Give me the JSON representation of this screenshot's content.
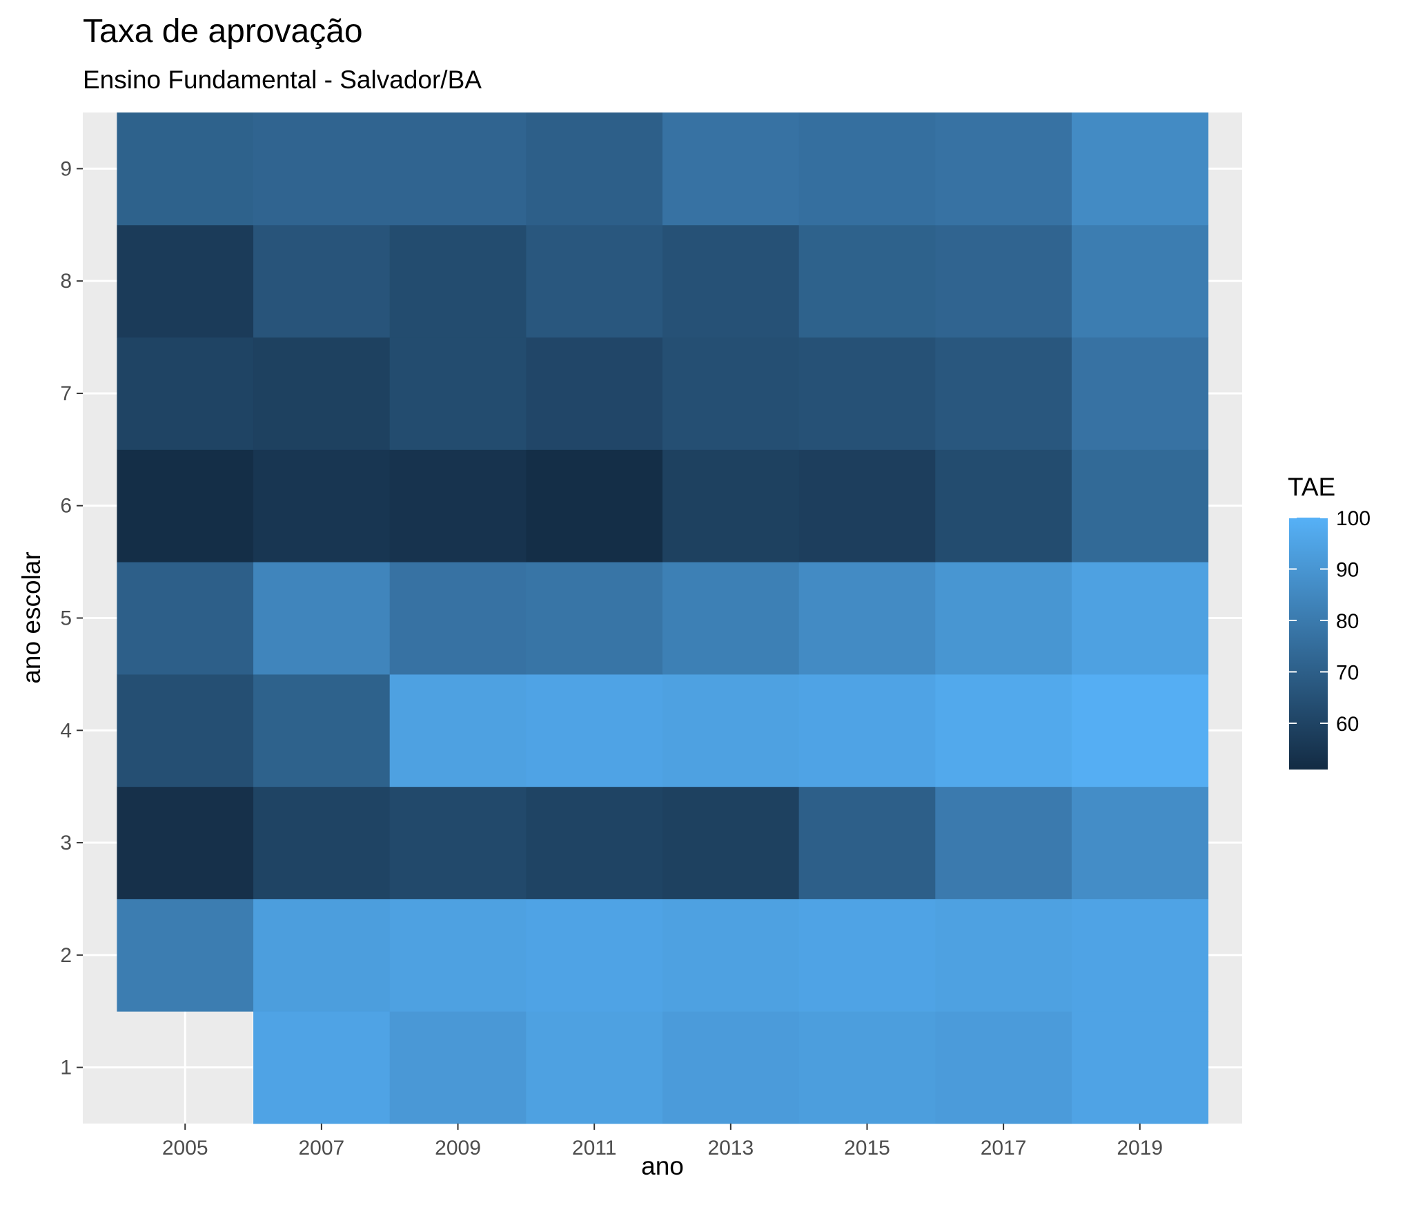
{
  "chart_data": {
    "type": "heatmap",
    "title": "Taxa de aprovação",
    "subtitle": "Ensino Fundamental - Salvador/BA",
    "xlabel": "ano",
    "ylabel": "ano escolar",
    "x": [
      2005,
      2007,
      2009,
      2011,
      2013,
      2015,
      2017,
      2019
    ],
    "y": [
      1,
      2,
      3,
      4,
      5,
      6,
      7,
      8,
      9
    ],
    "x_ticks": [
      "2005",
      "2007",
      "2009",
      "2011",
      "2013",
      "2015",
      "2017",
      "2019"
    ],
    "y_ticks": [
      "1",
      "2",
      "3",
      "4",
      "5",
      "6",
      "7",
      "8",
      "9"
    ],
    "xlim": [
      2003.5,
      2020.5
    ],
    "ylim": [
      0.5,
      9.5
    ],
    "values": [
      [
        null,
        95,
        91,
        94,
        92,
        93,
        92,
        95
      ],
      [
        81,
        93,
        94,
        95,
        94,
        95,
        94,
        95
      ],
      [
        53,
        60,
        62,
        60,
        59,
        70,
        80,
        87
      ],
      [
        64,
        71,
        94,
        95,
        94,
        95,
        97,
        99
      ],
      [
        70,
        84,
        77,
        78,
        82,
        86,
        90,
        94
      ],
      [
        52,
        55,
        54,
        52,
        59,
        58,
        63,
        74
      ],
      [
        60,
        59,
        63,
        61,
        64,
        65,
        67,
        77
      ],
      [
        57,
        66,
        63,
        67,
        65,
        71,
        72,
        81
      ],
      [
        71,
        72,
        72,
        70,
        77,
        76,
        77,
        86
      ]
    ],
    "legend": {
      "title": "TAE",
      "ticks": [
        60,
        70,
        80,
        90,
        100
      ],
      "min": 51,
      "max": 100,
      "low_color": "#132B43",
      "high_color": "#56B1F7",
      "placement": "right"
    },
    "background_color": "#EBEBEB",
    "grid_color": "#FFFFFF",
    "grid": true
  }
}
